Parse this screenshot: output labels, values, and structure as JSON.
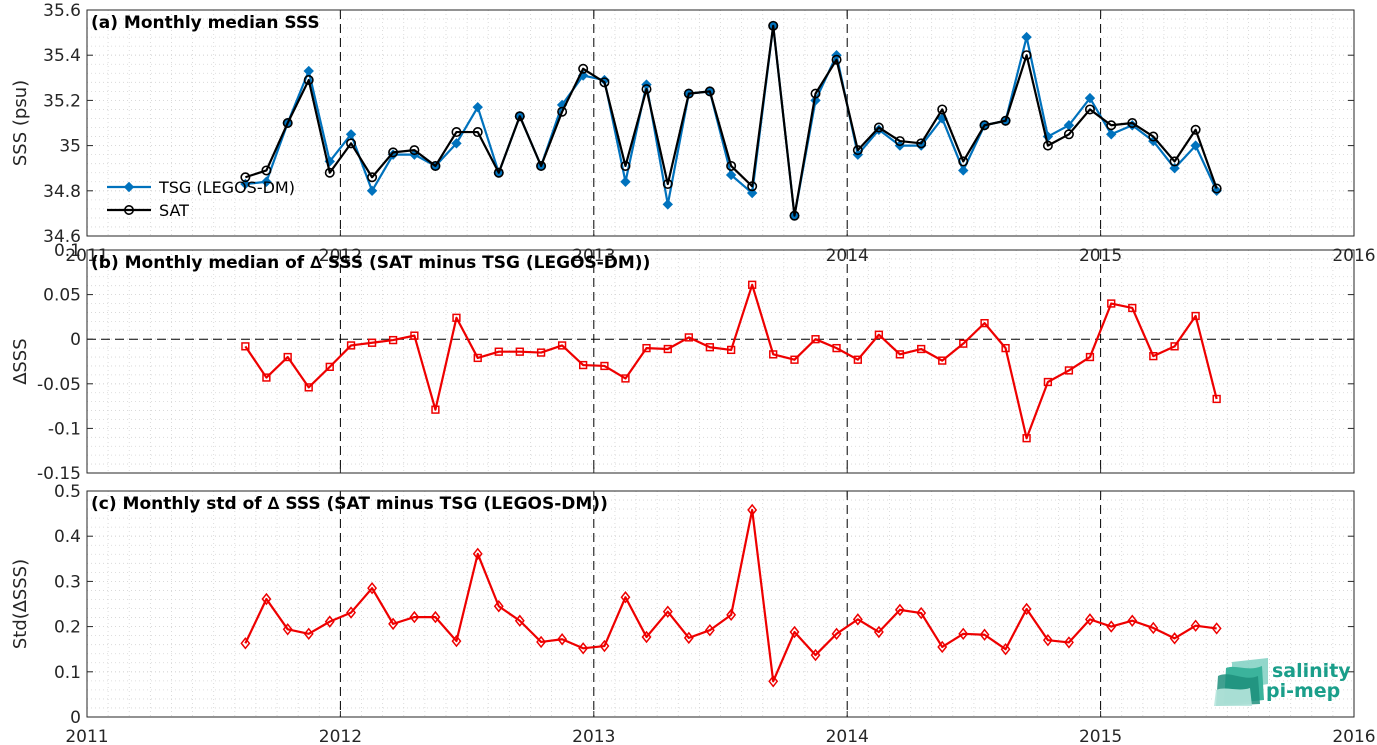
{
  "colors": {
    "tsg": "#0072BD",
    "sat": "#000000",
    "delta": "#ee0000",
    "logo": "#1a9e8a"
  },
  "logo": {
    "line1": "salinity",
    "line2": "pi-mep"
  },
  "chart_data": [
    {
      "id": "a",
      "type": "line",
      "title": "(a) Monthly median SSS",
      "ylabel": "SSS (psu)",
      "xlim": [
        2011,
        2016
      ],
      "ylim": [
        34.6,
        35.6
      ],
      "yticks": [
        34.6,
        34.8,
        35,
        35.2,
        35.4,
        35.6
      ],
      "yticklabels": [
        "34.6",
        "34.8",
        "35",
        "35.2",
        "35.4",
        "35.6"
      ],
      "xticks": [
        2011,
        2012,
        2013,
        2014,
        2015,
        2016
      ],
      "xticklabels": [
        "2011",
        "2012",
        "2013",
        "2014",
        "2015",
        "2016"
      ],
      "grid": true,
      "legend_position": "lower-left",
      "x": [
        2011.625,
        2011.708,
        2011.792,
        2011.875,
        2011.958,
        2012.042,
        2012.125,
        2012.208,
        2012.292,
        2012.375,
        2012.458,
        2012.542,
        2012.625,
        2012.708,
        2012.792,
        2012.875,
        2012.958,
        2013.042,
        2013.125,
        2013.208,
        2013.292,
        2013.375,
        2013.458,
        2013.542,
        2013.625,
        2013.708,
        2013.792,
        2013.875,
        2013.958,
        2014.042,
        2014.125,
        2014.208,
        2014.292,
        2014.375,
        2014.458,
        2014.542,
        2014.625,
        2014.708,
        2014.792,
        2014.875,
        2014.958,
        2015.042,
        2015.125,
        2015.208,
        2015.292,
        2015.375,
        2015.458
      ],
      "series": [
        {
          "name": "TSG (LEGOS-DM)",
          "marker": "diamond-filled",
          "values": [
            34.83,
            34.84,
            35.1,
            35.33,
            34.93,
            35.05,
            34.8,
            34.96,
            34.96,
            34.91,
            35.01,
            35.17,
            34.88,
            35.13,
            34.91,
            35.18,
            35.31,
            35.29,
            34.84,
            35.27,
            34.74,
            35.23,
            35.24,
            34.87,
            34.79,
            35.53,
            34.69,
            35.2,
            35.4,
            34.96,
            35.07,
            35.0,
            35.0,
            35.12,
            34.89,
            35.09,
            35.11,
            35.48,
            35.04,
            35.09,
            35.21,
            35.05,
            35.09,
            35.02,
            34.9,
            35.0,
            34.8
          ]
        },
        {
          "name": "SAT",
          "marker": "circle-open",
          "values": [
            34.86,
            34.89,
            35.1,
            35.29,
            34.88,
            35.01,
            34.86,
            34.97,
            34.98,
            34.91,
            35.06,
            35.06,
            34.88,
            35.13,
            34.91,
            35.15,
            35.34,
            35.28,
            34.91,
            35.25,
            34.83,
            35.23,
            35.24,
            34.91,
            34.82,
            35.53,
            34.69,
            35.23,
            35.38,
            34.98,
            35.08,
            35.02,
            35.01,
            35.16,
            34.93,
            35.09,
            35.11,
            35.4,
            35.0,
            35.05,
            35.16,
            35.09,
            35.1,
            35.04,
            34.93,
            35.07,
            34.81
          ]
        }
      ]
    },
    {
      "id": "b",
      "type": "line",
      "title": "(b) Monthly median of ∆ SSS (SAT minus TSG (LEGOS-DM))",
      "ylabel": "∆SSS",
      "xlim": [
        2011,
        2016
      ],
      "ylim": [
        -0.15,
        0.1
      ],
      "yticks": [
        -0.15,
        -0.1,
        -0.05,
        0,
        0.05,
        0.1
      ],
      "yticklabels": [
        "-0.15",
        "-0.1",
        "-0.05",
        "0",
        "0.05",
        "0.1"
      ],
      "zero_line": true,
      "grid": true,
      "x": [
        2011.625,
        2011.708,
        2011.792,
        2011.875,
        2011.958,
        2012.042,
        2012.125,
        2012.208,
        2012.292,
        2012.375,
        2012.458,
        2012.542,
        2012.625,
        2012.708,
        2012.792,
        2012.875,
        2012.958,
        2013.042,
        2013.125,
        2013.208,
        2013.292,
        2013.375,
        2013.458,
        2013.542,
        2013.625,
        2013.708,
        2013.792,
        2013.875,
        2013.958,
        2014.042,
        2014.125,
        2014.208,
        2014.292,
        2014.375,
        2014.458,
        2014.542,
        2014.625,
        2014.708,
        2014.792,
        2014.875,
        2014.958,
        2015.042,
        2015.125,
        2015.208,
        2015.292,
        2015.375,
        2015.458
      ],
      "series": [
        {
          "marker": "square-open",
          "values": [
            -0.008,
            -0.043,
            -0.02,
            -0.054,
            -0.031,
            -0.007,
            -0.004,
            -0.001,
            0.004,
            -0.079,
            0.024,
            -0.021,
            -0.014,
            -0.014,
            -0.015,
            -0.007,
            -0.029,
            -0.03,
            -0.044,
            -0.01,
            -0.011,
            0.002,
            -0.009,
            -0.012,
            0.061,
            -0.017,
            -0.023,
            0.0,
            -0.01,
            -0.023,
            0.005,
            -0.017,
            -0.011,
            -0.024,
            -0.005,
            0.018,
            -0.01,
            -0.111,
            -0.048,
            -0.035,
            -0.02,
            0.04,
            0.035,
            -0.019,
            -0.008,
            0.026,
            -0.067
          ]
        }
      ]
    },
    {
      "id": "c",
      "type": "line",
      "title": "(c) Monthly std of ∆ SSS (SAT minus TSG (LEGOS-DM))",
      "ylabel": "Std(∆SSS)",
      "xlim": [
        2011,
        2016
      ],
      "ylim": [
        0,
        0.5
      ],
      "yticks": [
        0,
        0.1,
        0.2,
        0.3,
        0.4,
        0.5
      ],
      "yticklabels": [
        "0",
        "0.1",
        "0.2",
        "0.3",
        "0.4",
        "0.5"
      ],
      "xticks": [
        2011,
        2012,
        2013,
        2014,
        2015,
        2016
      ],
      "xticklabels": [
        "2011",
        "2012",
        "2013",
        "2014",
        "2015",
        "2016"
      ],
      "grid": true,
      "x": [
        2011.625,
        2011.708,
        2011.792,
        2011.875,
        2011.958,
        2012.042,
        2012.125,
        2012.208,
        2012.292,
        2012.375,
        2012.458,
        2012.542,
        2012.625,
        2012.708,
        2012.792,
        2012.875,
        2012.958,
        2013.042,
        2013.125,
        2013.208,
        2013.292,
        2013.375,
        2013.458,
        2013.542,
        2013.625,
        2013.708,
        2013.792,
        2013.875,
        2013.958,
        2014.042,
        2014.125,
        2014.208,
        2014.292,
        2014.375,
        2014.458,
        2014.542,
        2014.625,
        2014.708,
        2014.792,
        2014.875,
        2014.958,
        2015.042,
        2015.125,
        2015.208,
        2015.292,
        2015.375,
        2015.458
      ],
      "series": [
        {
          "marker": "diamond-open",
          "values": [
            0.163,
            0.261,
            0.194,
            0.184,
            0.211,
            0.231,
            0.285,
            0.206,
            0.221,
            0.221,
            0.168,
            0.361,
            0.245,
            0.213,
            0.166,
            0.172,
            0.152,
            0.157,
            0.265,
            0.177,
            0.233,
            0.175,
            0.192,
            0.226,
            0.458,
            0.079,
            0.188,
            0.137,
            0.184,
            0.216,
            0.188,
            0.237,
            0.23,
            0.155,
            0.184,
            0.182,
            0.15,
            0.239,
            0.17,
            0.165,
            0.216,
            0.2,
            0.213,
            0.197,
            0.174,
            0.202,
            0.196
          ]
        }
      ]
    }
  ]
}
